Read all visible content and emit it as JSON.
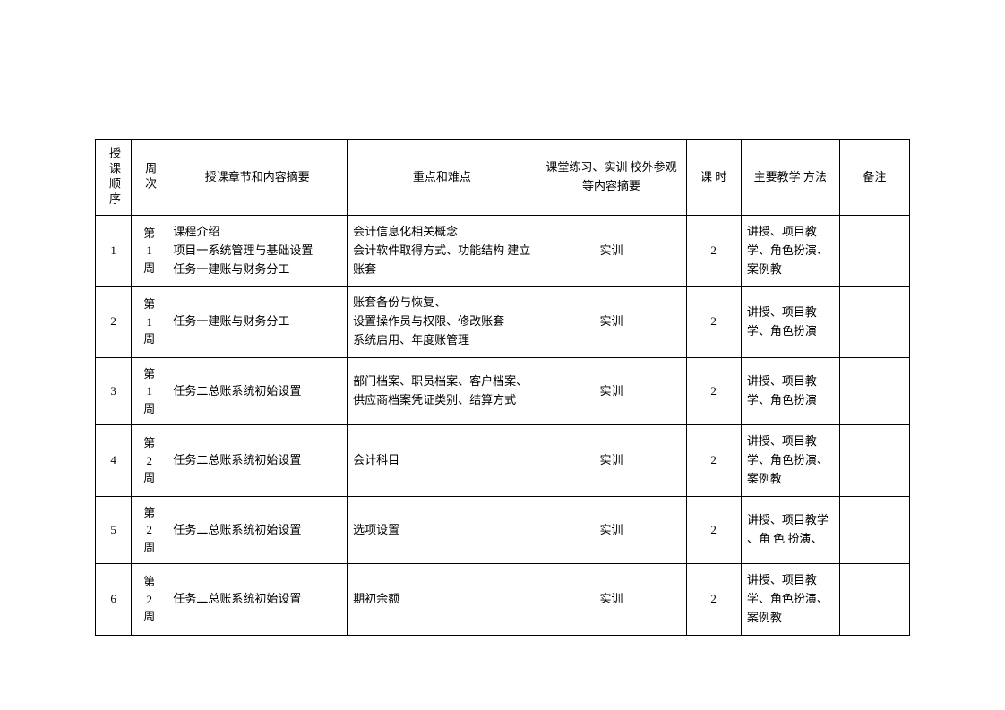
{
  "headers": {
    "seq": "授课顺序",
    "week": "周次",
    "chapter": "授课章节和内容摘要",
    "keypoint": "重点和难点",
    "practice": "课堂练习、实训 校外参观等内容摘要",
    "hours": "课 时",
    "method": "主要教学 方法",
    "remark": "备注"
  },
  "rows": [
    {
      "seq": "1",
      "week": "第1周",
      "chapter": "课程介绍\n项目一系统管理与基础设置\n任务一建账与财务分工",
      "keypoint": "会计信息化相关概念\n会计软件取得方式、功能结构 建立账套",
      "practice": "实训",
      "hours": "2",
      "method": "讲授、项目教学、角色扮演、 案例教",
      "remark": ""
    },
    {
      "seq": "2",
      "week": "第1周",
      "chapter": "任务一建账与财务分工",
      "keypoint": "账套备份与恢复、\n设置操作员与权限、修改账套\n系统启用、年度账管理",
      "practice": "实训",
      "hours": "2",
      "method": "讲授、项目教学、角色扮演",
      "remark": ""
    },
    {
      "seq": "3",
      "week": "第1周",
      "chapter": "任务二总账系统初始设置",
      "keypoint": "部门档案、职员档案、客户档案、 供应商档案凭证类别、结算方式",
      "practice": "实训",
      "hours": "2",
      "method": "讲授、项目教学、角色扮演",
      "remark": ""
    },
    {
      "seq": "4",
      "week": "第2周",
      "chapter": "任务二总账系统初始设置",
      "keypoint": "会计科目",
      "practice": "实训",
      "hours": "2",
      "method": "讲授、项目教学、角色扮演、 案例教",
      "remark": ""
    },
    {
      "seq": "5",
      "week": "第2周",
      "chapter": "任务二总账系统初始设置",
      "keypoint": "选项设置",
      "practice": "实训",
      "hours": "2",
      "method": "讲授、项目教学 、角 色 扮演、",
      "remark": ""
    },
    {
      "seq": "6",
      "week": "第2周",
      "chapter": "任务二总账系统初始设置",
      "keypoint": "期初余额",
      "practice": "实训",
      "hours": "2",
      "method": "讲授、项目教学、角色扮演、 案例教",
      "remark": ""
    }
  ],
  "style": {
    "font_family": "SimSun",
    "font_size": 13,
    "border_color": "#000000",
    "background_color": "#ffffff",
    "text_color": "#000000"
  }
}
